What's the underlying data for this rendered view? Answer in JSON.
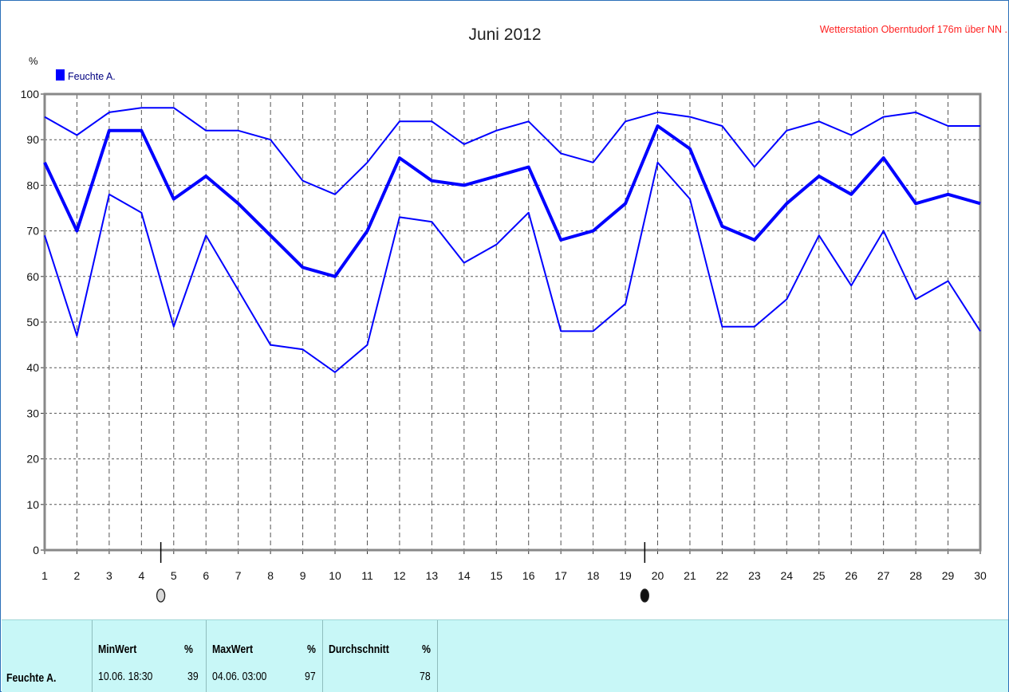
{
  "chart_data": {
    "type": "line",
    "title": "Juni 2012",
    "subtitle": "Wetterstation Oberntudorf 176m über NN .",
    "ylabel": "%",
    "ylim": [
      0,
      100
    ],
    "yticks": [
      "0",
      "10",
      "20",
      "30",
      "40",
      "50",
      "60",
      "70",
      "80",
      "90",
      "100"
    ],
    "x": [
      "1",
      "2",
      "3",
      "4",
      "5",
      "6",
      "7",
      "8",
      "9",
      "10",
      "11",
      "12",
      "13",
      "14",
      "15",
      "16",
      "17",
      "18",
      "19",
      "20",
      "21",
      "22",
      "23",
      "24",
      "25",
      "26",
      "27",
      "28",
      "29",
      "30"
    ],
    "grid": true,
    "legend": [
      {
        "label": "Feuchte A.",
        "color": "#0000ff"
      }
    ],
    "legend_position": "top-left",
    "series": [
      {
        "role": "max",
        "color": "#0000ff",
        "values": [
          95,
          91,
          96,
          97,
          97,
          92,
          92,
          90,
          81,
          78,
          85,
          94,
          94,
          89,
          92,
          94,
          87,
          85,
          94,
          96,
          95,
          93,
          84,
          92,
          94,
          91,
          95,
          96,
          93,
          93
        ]
      },
      {
        "role": "mean",
        "color": "#0000ff",
        "values": [
          85,
          70,
          92,
          92,
          77,
          82,
          76,
          69,
          62,
          60,
          70,
          86,
          81,
          80,
          82,
          84,
          68,
          70,
          76,
          93,
          88,
          71,
          68,
          76,
          82,
          78,
          86,
          76,
          78,
          76
        ]
      },
      {
        "role": "min",
        "color": "#0000ff",
        "values": [
          69,
          47,
          78,
          74,
          49,
          69,
          57,
          45,
          44,
          39,
          45,
          73,
          72,
          63,
          67,
          74,
          48,
          48,
          54,
          85,
          77,
          49,
          49,
          55,
          69,
          58,
          70,
          55,
          59,
          48
        ]
      }
    ],
    "moon_markers": [
      {
        "after_day": "4",
        "phase": "full-moon"
      },
      {
        "after_day": "19",
        "phase": "new-moon"
      }
    ]
  },
  "stats": {
    "row_label": "Feuchte A.",
    "min_header": "MinWert",
    "min_unit": "%",
    "min_time": "10.06. 18:30",
    "min_value": "39",
    "max_header": "MaxWert",
    "max_unit": "%",
    "max_time": "04.06. 03:00",
    "max_value": "97",
    "avg_header": "Durchschnitt",
    "avg_unit": "%",
    "avg_value": "78"
  },
  "colors": {
    "line": "#0000ff",
    "station_text": "#ff2222",
    "stats_background": "#c8f7f7"
  }
}
